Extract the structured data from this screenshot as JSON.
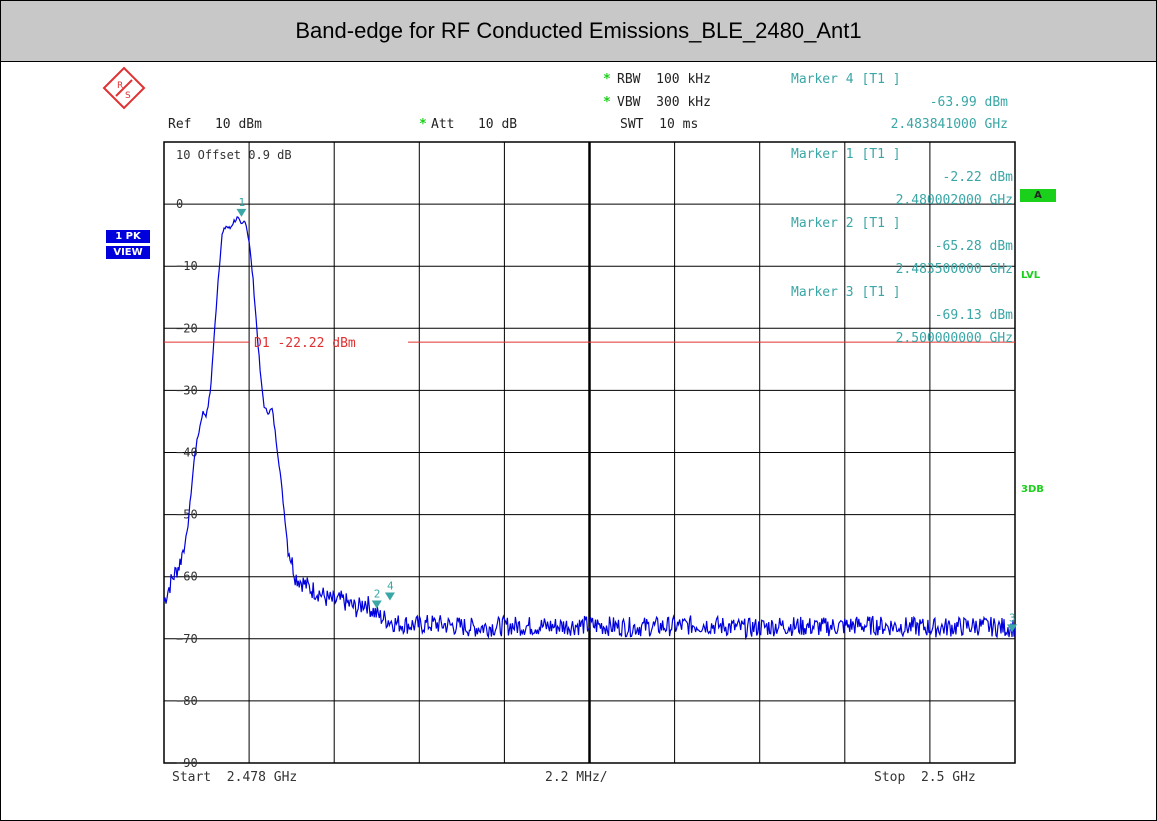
{
  "title": "Band-edge for RF Conducted Emissions_BLE_2480_Ant1",
  "header": {
    "rbw_star": "*",
    "rbw": "RBW  100 kHz",
    "vbw_star": "*",
    "vbw": "VBW  300 kHz",
    "ref": "Ref   10 dBm",
    "att_star": "*",
    "att": "Att   10 dB",
    "swt": "SWT  10 ms"
  },
  "marker4": {
    "label": "Marker 4 [T1 ]",
    "level": "-63.99 dBm",
    "freq": "2.483841000 GHz"
  },
  "markers_in_plot": [
    {
      "label": "Marker 1 [T1 ]",
      "level": "-2.22 dBm",
      "freq": "2.480002000 GHz"
    },
    {
      "label": "Marker 2 [T1 ]",
      "level": "-65.28 dBm",
      "freq": "2.483500000 GHz"
    },
    {
      "label": "Marker 3 [T1 ]",
      "level": "-69.13 dBm",
      "freq": "2.500000000 GHz"
    }
  ],
  "offset": "10  Offset   0.9 dB",
  "side": {
    "trace_mode_1": "1 PK",
    "trace_mode_2": "VIEW",
    "a_flag": "A",
    "lvl": "LVL",
    "db3": "3DB"
  },
  "footer": {
    "start": "Start  2.478 GHz",
    "span_div": "2.2 MHz/",
    "stop": "Stop  2.5 GHz"
  },
  "colors": {
    "trace": "#0000dd",
    "display_line": "#e03030",
    "marker": "#3aa6a6",
    "status_green": "#1bd01b",
    "title_bar": "#c8c8c8"
  },
  "chart_data": {
    "type": "line",
    "title": "Band-edge for RF Conducted Emissions_BLE_2480_Ant1",
    "x_unit": "GHz",
    "y_unit": "dBm",
    "xlim": [
      2.478,
      2.5
    ],
    "ylim": [
      -90,
      10
    ],
    "y_ticks": [
      0,
      -10,
      -20,
      -30,
      -40,
      -50,
      -60,
      -70,
      -80,
      -90
    ],
    "grid": true,
    "series": [
      {
        "x": [
          2.478,
          2.4782,
          2.4784,
          2.4786,
          2.4788,
          2.479,
          2.4791,
          2.4792,
          2.4793,
          2.4794,
          2.4795,
          2.4796,
          2.4797,
          2.4798,
          2.4799,
          2.48,
          2.4801,
          2.4802,
          2.4803,
          2.4804,
          2.4805,
          2.4806,
          2.4807,
          2.4808,
          2.481,
          2.4812,
          2.4814,
          2.4816,
          2.4818,
          2.482,
          2.4822,
          2.4824,
          2.4826,
          2.4828,
          2.483,
          2.4832,
          2.4834,
          2.4836,
          2.4838,
          2.484,
          2.4845,
          2.485,
          2.486,
          2.487,
          2.488,
          2.489,
          2.49,
          2.491,
          2.492,
          2.493,
          2.494,
          2.495,
          2.496,
          2.497,
          2.498,
          2.499,
          2.4995,
          2.5
        ],
        "y": [
          -64.0,
          -60.5,
          -58.0,
          -53.0,
          -40.0,
          -33.5,
          -34.0,
          -30.0,
          -21.0,
          -12.0,
          -5.0,
          -3.5,
          -4.0,
          -2.8,
          -2.22,
          -3.5,
          -2.5,
          -6.0,
          -12.0,
          -20.0,
          -28.0,
          -33.0,
          -33.5,
          -33.0,
          -43.0,
          -55.0,
          -60.0,
          -61.0,
          -62.0,
          -62.5,
          -63.5,
          -64.0,
          -63.8,
          -64.5,
          -65.2,
          -63.99,
          -65.5,
          -66.5,
          -67.0,
          -67.5,
          -67.8,
          -67.6,
          -68.2,
          -67.9,
          -68.0,
          -67.8,
          -68.1,
          -68.0,
          -67.7,
          -68.3,
          -67.9,
          -68.1,
          -67.8,
          -68.0,
          -68.2,
          -67.9,
          -68.1,
          -68.2
        ]
      }
    ],
    "display_line": {
      "label": "D1  -22.22 dBm",
      "value": -22.22
    },
    "markers": [
      {
        "id": "1",
        "x": 2.480002,
        "y": -2.22
      },
      {
        "id": "2",
        "x": 2.4835,
        "y": -65.28
      },
      {
        "id": "3",
        "x": 2.5,
        "y": -69.13
      },
      {
        "id": "4",
        "x": 2.483841,
        "y": -63.99
      }
    ]
  }
}
